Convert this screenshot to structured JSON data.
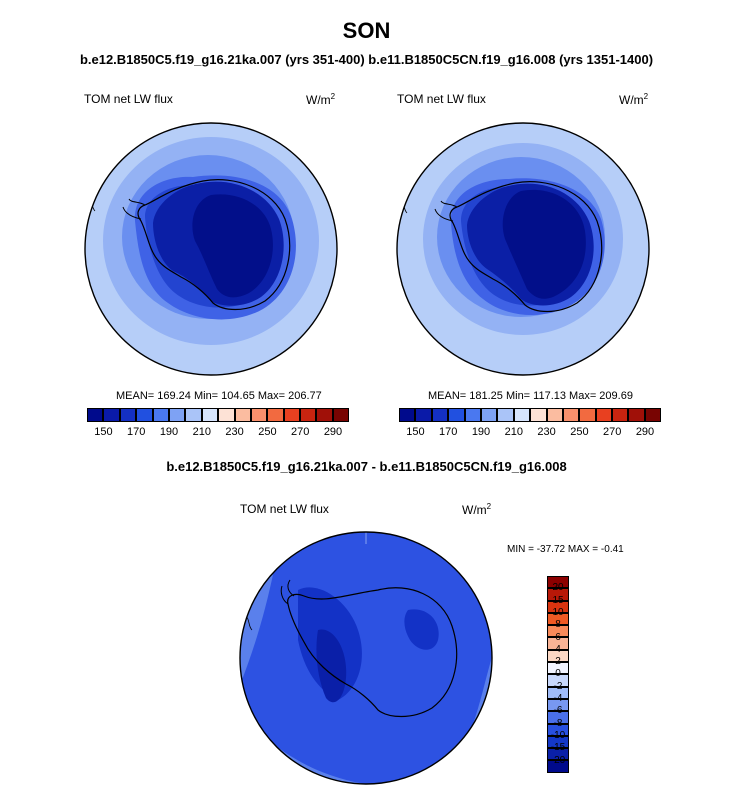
{
  "header": {
    "title": "SON",
    "subtitle": "b.e12.B1850C5.f19_g16.21ka.007 (yrs 351-400) b.e11.B1850C5CN.f19_g16.008 (yrs 1351-1400)"
  },
  "panels": [
    {
      "variable": "TOM net LW flux",
      "units_base": "W/m",
      "units_exp": "2",
      "stats": "MEAN= 169.24  Min= 104.65  Max= 206.77"
    },
    {
      "variable": "TOM net LW flux",
      "units_base": "W/m",
      "units_exp": "2",
      "stats": "MEAN= 181.25  Min= 117.13  Max= 209.69"
    }
  ],
  "diff": {
    "title": "b.e12.B1850C5.f19_g16.21ka.007 - b.e11.B1850C5CN.f19_g16.008",
    "variable": "TOM net LW flux",
    "units_base": "W/m",
    "units_exp": "2",
    "minmax": "MIN = -37.72 MAX =  -0.41"
  },
  "colorbar_abs": {
    "colors": [
      "#000a8c",
      "#0a1aa8",
      "#1430c4",
      "#2150e0",
      "#4a78f0",
      "#7ea2f4",
      "#aac4f8",
      "#d6e4fc",
      "#fde2d6",
      "#fbbca0",
      "#f8906c",
      "#f26a40",
      "#e84020",
      "#c82410",
      "#a01008",
      "#780402"
    ],
    "tick_labels": [
      "150",
      "170",
      "190",
      "210",
      "230",
      "250",
      "270",
      "290"
    ]
  },
  "colorbar_diff": {
    "colors": [
      "#8c0000",
      "#b81808",
      "#d83410",
      "#f05a24",
      "#f88a5a",
      "#fab496",
      "#fcd8c4",
      "#f2f4ff",
      "#c8d8fc",
      "#a0bcf8",
      "#7898f0",
      "#4a70ea",
      "#2850e0",
      "#1438c8",
      "#0a20a8",
      "#000a8c"
    ],
    "tick_labels": [
      "20",
      "15",
      "10",
      "8",
      "6",
      "4",
      "2",
      "0",
      "-2",
      "-4",
      "-6",
      "-8",
      "-10",
      "-15",
      "-20"
    ]
  },
  "field_colors": {
    "ring_outer_light": "#b6cef8",
    "ring_mid": "#94b2f4",
    "ring_inner": "#6a8ff0",
    "ring_deep": "#3f62e6",
    "ring_deeper": "#2344d0",
    "core": "#0b1fa6",
    "core_darkest": "#020f8a",
    "diff_base": "#2d52e2",
    "diff_light": "#5a80ec",
    "diff_dark": "#1332c6",
    "diff_darker": "#0a1fa8"
  }
}
